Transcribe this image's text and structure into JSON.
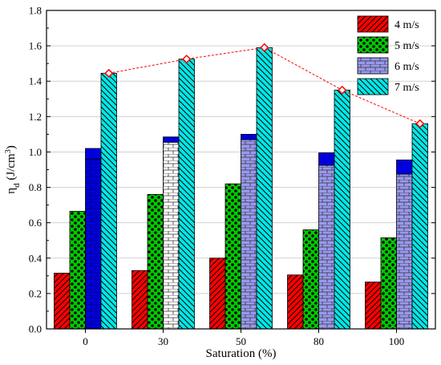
{
  "chart_data": {
    "type": "bar",
    "categories": [
      "0",
      "30",
      "50",
      "80",
      "100"
    ],
    "xlabel": "Saturation (%)",
    "ylabel": "η_d (J/cm³)",
    "ylabel_parts": {
      "main": "η",
      "sub": "d",
      "unit": " (J/cm",
      "sup": "3",
      "close": ")"
    },
    "ylim": [
      0,
      1.8
    ],
    "yticks": [
      "0.0",
      "0.2",
      "0.4",
      "0.6",
      "0.8",
      "1.0",
      "1.2",
      "1.4",
      "1.6",
      "1.8"
    ],
    "grid": "horizontal",
    "legend_position": "top-right",
    "series": [
      {
        "name": "4 m/s",
        "values": [
          0.315,
          0.33,
          0.4,
          0.305,
          0.265
        ],
        "color": "#ff0000",
        "pattern": "diagonal-lines",
        "cap_color": "#ff0000",
        "cap_values": [
          0,
          0,
          0,
          0,
          0
        ]
      },
      {
        "name": "5 m/s",
        "values": [
          0.665,
          0.76,
          0.82,
          0.56,
          0.515
        ],
        "color": "#00cc00",
        "pattern": "checker-dots",
        "cap_color": "#00cc00",
        "cap_values": [
          0,
          0,
          0,
          0,
          0
        ]
      },
      {
        "name": "6 m/s",
        "values": [
          1.02,
          1.085,
          1.1,
          0.995,
          0.955
        ],
        "color": "#9999ee",
        "pattern": "bricks",
        "cap_color": "#0000dd",
        "cap_values": [
          0.06,
          0.03,
          0.03,
          0.07,
          0.08
        ],
        "body_colors": [
          "#0000dd",
          "#ffffff",
          "#9999ee",
          "#9999ee",
          "#9999ee"
        ]
      },
      {
        "name": "7 m/s",
        "values": [
          1.445,
          1.525,
          1.59,
          1.35,
          1.16
        ],
        "color": "#00e8e8",
        "pattern": "diagonal-lines",
        "cap_color": "#00e8e8",
        "cap_values": [
          0,
          0,
          0,
          0,
          0
        ]
      }
    ],
    "trend_line": {
      "series": "7 m/s",
      "color": "#ff0000",
      "style": "dashed",
      "marker": "diamond"
    }
  }
}
